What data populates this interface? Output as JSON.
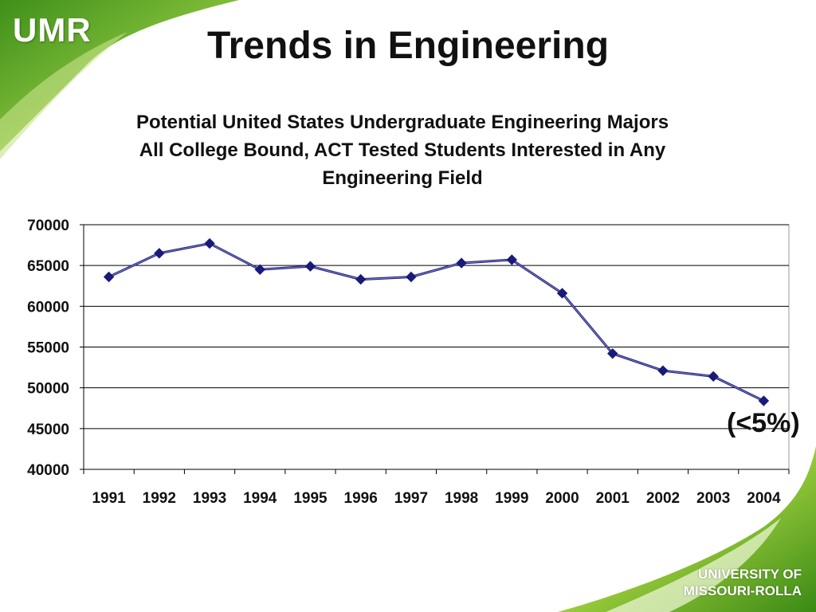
{
  "logo": {
    "text": "UMR"
  },
  "slide": {
    "title": "Trends in Engineering"
  },
  "footer_logo": {
    "line1": "UNIVERSITY OF",
    "line2": "MISSOURI-ROLLA"
  },
  "colors": {
    "accent_green": "#6ab023",
    "series": "#1a1a7a",
    "gridline": "#000000"
  },
  "chart_data": {
    "type": "line",
    "title_lines": [
      "Potential United States Undergraduate Engineering Majors",
      "All College Bound, ACT Tested Students Interested in Any",
      "Engineering Field"
    ],
    "xlabel": "",
    "ylabel": "",
    "categories": [
      "1991",
      "1992",
      "1993",
      "1994",
      "1995",
      "1996",
      "1997",
      "1998",
      "1999",
      "2000",
      "2001",
      "2002",
      "2003",
      "2004"
    ],
    "values": [
      63600,
      66500,
      67700,
      64500,
      64900,
      63300,
      63600,
      65300,
      65700,
      61600,
      54200,
      52100,
      51400,
      48400
    ],
    "ylim": [
      40000,
      70000
    ],
    "yticks": [
      "70000",
      "65000",
      "60000",
      "55000",
      "50000",
      "45000",
      "40000"
    ],
    "grid": true,
    "legend": "none",
    "annotation": "(<5%)"
  }
}
